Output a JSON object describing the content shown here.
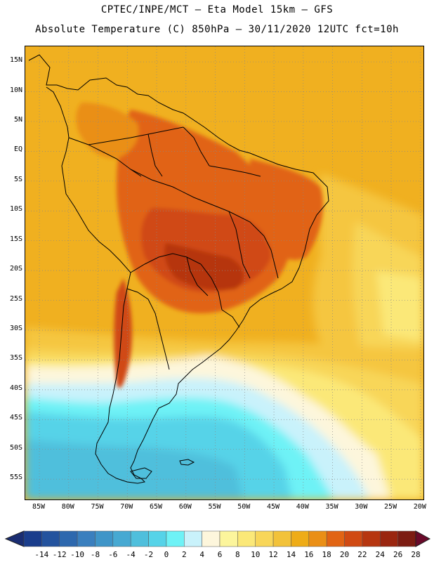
{
  "header": {
    "line1": "CPTEC/INPE/MCT –  Eta Model 15km – GFS",
    "line2": "Absolute Temperature (C) 850hPa – 30/11/2020 12UTC fct=10h"
  },
  "map": {
    "lat_ticks": [
      "15N",
      "10N",
      "5N",
      "EQ",
      "5S",
      "10S",
      "15S",
      "20S",
      "25S",
      "30S",
      "35S",
      "40S",
      "45S",
      "50S",
      "55S"
    ],
    "lon_ticks": [
      "85W",
      "80W",
      "75W",
      "70W",
      "65W",
      "60W",
      "55W",
      "50W",
      "45W",
      "40W",
      "35W",
      "30W",
      "25W",
      "20W"
    ],
    "lat_values": [
      15,
      10,
      5,
      0,
      -5,
      -10,
      -15,
      -20,
      -25,
      -30,
      -35,
      -40,
      -45,
      -50,
      -55
    ],
    "lon_values": [
      -85,
      -80,
      -75,
      -70,
      -65,
      -60,
      -55,
      -50,
      -45,
      -40,
      -35,
      -30,
      -25,
      -20
    ]
  },
  "colorbar": {
    "labels": [
      "-14",
      "-12",
      "-10",
      "-8",
      "-6",
      "-4",
      "-2",
      "0",
      "2",
      "4",
      "6",
      "8",
      "10",
      "12",
      "14",
      "16",
      "18",
      "20",
      "22",
      "24",
      "26",
      "28"
    ],
    "colors": [
      "#1a3d8c",
      "#24539e",
      "#2d68ae",
      "#3a7fbe",
      "#3f95c8",
      "#47a9d2",
      "#4fbfdc",
      "#56d3e8",
      "#6ef2f6",
      "#c9f2fb",
      "#fdf6dc",
      "#fcf59c",
      "#fbe878",
      "#f8d659",
      "#f2c23a",
      "#eeac17",
      "#ea8f16",
      "#e16414",
      "#d04a13",
      "#b63610",
      "#9a2610",
      "#7c1c12"
    ],
    "low_color": "#1a2d72",
    "high_color": "#6a0a2a"
  }
}
